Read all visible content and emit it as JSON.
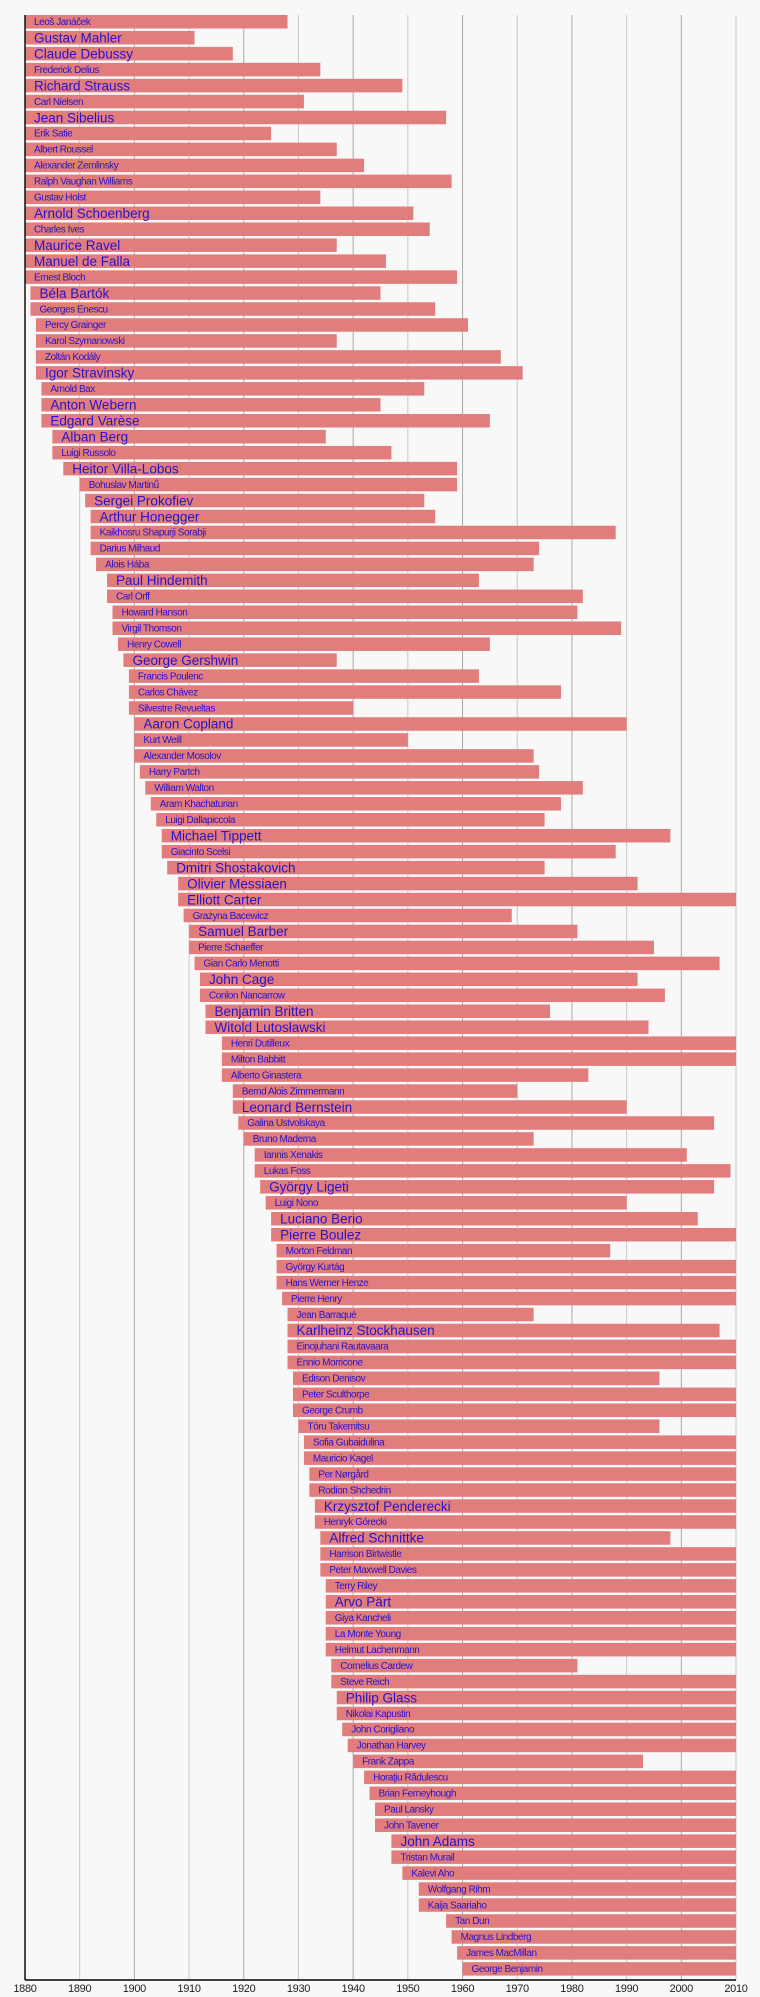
{
  "chart_data": {
    "type": "bar",
    "orientation": "horizontal-timeline",
    "title": "",
    "xlabel": "",
    "ylabel": "",
    "xlim": [
      1880,
      2010
    ],
    "x_ticks": [
      1880,
      1890,
      1900,
      1910,
      1920,
      1930,
      1940,
      1950,
      1960,
      1970,
      1980,
      1990,
      2000,
      2010
    ],
    "grid": "vertical, every 10 years (darker every 20 years)",
    "colors": {
      "bar": "#e27d7d",
      "label": "#2a12c8",
      "background": "#f8f8f8"
    },
    "bars": [
      {
        "name": "Leoš Janáček",
        "start": 1880,
        "end": 1928,
        "major": false
      },
      {
        "name": "Gustav Mahler",
        "start": 1880,
        "end": 1911,
        "major": true
      },
      {
        "name": "Claude Debussy",
        "start": 1880,
        "end": 1918,
        "major": true
      },
      {
        "name": "Frederick Delius",
        "start": 1880,
        "end": 1934,
        "major": false
      },
      {
        "name": "Richard Strauss",
        "start": 1880,
        "end": 1949,
        "major": true
      },
      {
        "name": "Carl Nielsen",
        "start": 1880,
        "end": 1931,
        "major": false
      },
      {
        "name": "Jean Sibelius",
        "start": 1880,
        "end": 1957,
        "major": true
      },
      {
        "name": "Erik Satie",
        "start": 1880,
        "end": 1925,
        "major": false
      },
      {
        "name": "Albert Roussel",
        "start": 1880,
        "end": 1937,
        "major": false
      },
      {
        "name": "Alexander Zemlinsky",
        "start": 1880,
        "end": 1942,
        "major": false
      },
      {
        "name": "Ralph Vaughan Williams",
        "start": 1880,
        "end": 1958,
        "major": false
      },
      {
        "name": "Gustav Holst",
        "start": 1880,
        "end": 1934,
        "major": false
      },
      {
        "name": "Arnold Schoenberg",
        "start": 1880,
        "end": 1951,
        "major": true
      },
      {
        "name": "Charles Ives",
        "start": 1880,
        "end": 1954,
        "major": false
      },
      {
        "name": "Maurice Ravel",
        "start": 1880,
        "end": 1937,
        "major": true
      },
      {
        "name": "Manuel de Falla",
        "start": 1880,
        "end": 1946,
        "major": true
      },
      {
        "name": "Ernest Bloch",
        "start": 1880,
        "end": 1959,
        "major": false
      },
      {
        "name": "Béla Bartók",
        "start": 1881,
        "end": 1945,
        "major": true
      },
      {
        "name": "Georges Enescu",
        "start": 1881,
        "end": 1955,
        "major": false
      },
      {
        "name": "Percy Grainger",
        "start": 1882,
        "end": 1961,
        "major": false
      },
      {
        "name": "Karol Szymanowski",
        "start": 1882,
        "end": 1937,
        "major": false
      },
      {
        "name": "Zoltán Kodály",
        "start": 1882,
        "end": 1967,
        "major": false
      },
      {
        "name": "Igor Stravinsky",
        "start": 1882,
        "end": 1971,
        "major": true
      },
      {
        "name": "Arnold Bax",
        "start": 1883,
        "end": 1953,
        "major": false
      },
      {
        "name": "Anton Webern",
        "start": 1883,
        "end": 1945,
        "major": true
      },
      {
        "name": "Edgard Varèse",
        "start": 1883,
        "end": 1965,
        "major": true
      },
      {
        "name": "Alban Berg",
        "start": 1885,
        "end": 1935,
        "major": true
      },
      {
        "name": "Luigi Russolo",
        "start": 1885,
        "end": 1947,
        "major": false
      },
      {
        "name": "Heitor Villa-Lobos",
        "start": 1887,
        "end": 1959,
        "major": true
      },
      {
        "name": "Bohuslav Martinů",
        "start": 1890,
        "end": 1959,
        "major": false
      },
      {
        "name": "Sergei Prokofiev",
        "start": 1891,
        "end": 1953,
        "major": true
      },
      {
        "name": "Arthur Honegger",
        "start": 1892,
        "end": 1955,
        "major": true
      },
      {
        "name": "Kaikhosru Shapurji Sorabji",
        "start": 1892,
        "end": 1988,
        "major": false
      },
      {
        "name": "Darius Milhaud",
        "start": 1892,
        "end": 1974,
        "major": false
      },
      {
        "name": "Alois Hába",
        "start": 1893,
        "end": 1973,
        "major": false
      },
      {
        "name": "Paul Hindemith",
        "start": 1895,
        "end": 1963,
        "major": true
      },
      {
        "name": "Carl Orff",
        "start": 1895,
        "end": 1982,
        "major": false
      },
      {
        "name": "Howard Hanson",
        "start": 1896,
        "end": 1981,
        "major": false
      },
      {
        "name": "Virgil Thomson",
        "start": 1896,
        "end": 1989,
        "major": false
      },
      {
        "name": "Henry Cowell",
        "start": 1897,
        "end": 1965,
        "major": false
      },
      {
        "name": "George Gershwin",
        "start": 1898,
        "end": 1937,
        "major": true
      },
      {
        "name": "Francis Poulenc",
        "start": 1899,
        "end": 1963,
        "major": false
      },
      {
        "name": "Carlos Chávez",
        "start": 1899,
        "end": 1978,
        "major": false
      },
      {
        "name": "Silvestre Revueltas",
        "start": 1899,
        "end": 1940,
        "major": false
      },
      {
        "name": "Aaron Copland",
        "start": 1900,
        "end": 1990,
        "major": true
      },
      {
        "name": "Kurt Weill",
        "start": 1900,
        "end": 1950,
        "major": false
      },
      {
        "name": "Alexander Mosolov",
        "start": 1900,
        "end": 1973,
        "major": false
      },
      {
        "name": "Harry Partch",
        "start": 1901,
        "end": 1974,
        "major": false
      },
      {
        "name": "William Walton",
        "start": 1902,
        "end": 1982,
        "major": false
      },
      {
        "name": "Aram Khachaturian",
        "start": 1903,
        "end": 1978,
        "major": false
      },
      {
        "name": "Luigi Dallapiccola",
        "start": 1904,
        "end": 1975,
        "major": false
      },
      {
        "name": "Michael Tippett",
        "start": 1905,
        "end": 1998,
        "major": true
      },
      {
        "name": "Giacinto Scelsi",
        "start": 1905,
        "end": 1988,
        "major": false
      },
      {
        "name": "Dmitri Shostakovich",
        "start": 1906,
        "end": 1975,
        "major": true
      },
      {
        "name": "Olivier Messiaen",
        "start": 1908,
        "end": 1992,
        "major": true
      },
      {
        "name": "Elliott Carter",
        "start": 1908,
        "end": 2010,
        "major": true
      },
      {
        "name": "Grażyna Bacewicz",
        "start": 1909,
        "end": 1969,
        "major": false
      },
      {
        "name": "Samuel Barber",
        "start": 1910,
        "end": 1981,
        "major": true
      },
      {
        "name": "Pierre Schaeffer",
        "start": 1910,
        "end": 1995,
        "major": false
      },
      {
        "name": "Gian Carlo Menotti",
        "start": 1911,
        "end": 2007,
        "major": false
      },
      {
        "name": "John Cage",
        "start": 1912,
        "end": 1992,
        "major": true
      },
      {
        "name": "Conlon Nancarrow",
        "start": 1912,
        "end": 1997,
        "major": false
      },
      {
        "name": "Benjamin Britten",
        "start": 1913,
        "end": 1976,
        "major": true
      },
      {
        "name": "Witold Lutosławski",
        "start": 1913,
        "end": 1994,
        "major": true
      },
      {
        "name": "Henri Dutilleux",
        "start": 1916,
        "end": 2010,
        "major": false
      },
      {
        "name": "Milton Babbitt",
        "start": 1916,
        "end": 2010,
        "major": false
      },
      {
        "name": "Alberto Ginastera",
        "start": 1916,
        "end": 1983,
        "major": false
      },
      {
        "name": "Bernd Alois Zimmermann",
        "start": 1918,
        "end": 1970,
        "major": false
      },
      {
        "name": "Leonard Bernstein",
        "start": 1918,
        "end": 1990,
        "major": true
      },
      {
        "name": "Galina Ustvolskaya",
        "start": 1919,
        "end": 2006,
        "major": false
      },
      {
        "name": "Bruno Maderna",
        "start": 1920,
        "end": 1973,
        "major": false
      },
      {
        "name": "Iannis Xenakis",
        "start": 1922,
        "end": 2001,
        "major": false
      },
      {
        "name": "Lukas Foss",
        "start": 1922,
        "end": 2009,
        "major": false
      },
      {
        "name": "György Ligeti",
        "start": 1923,
        "end": 2006,
        "major": true
      },
      {
        "name": "Luigi Nono",
        "start": 1924,
        "end": 1990,
        "major": false
      },
      {
        "name": "Luciano Berio",
        "start": 1925,
        "end": 2003,
        "major": true
      },
      {
        "name": "Pierre Boulez",
        "start": 1925,
        "end": 2010,
        "major": true
      },
      {
        "name": "Morton Feldman",
        "start": 1926,
        "end": 1987,
        "major": false
      },
      {
        "name": "György Kurtág",
        "start": 1926,
        "end": 2010,
        "major": false
      },
      {
        "name": "Hans Werner Henze",
        "start": 1926,
        "end": 2010,
        "major": false
      },
      {
        "name": "Pierre Henry",
        "start": 1927,
        "end": 2010,
        "major": false
      },
      {
        "name": "Jean Barraqué",
        "start": 1928,
        "end": 1973,
        "major": false
      },
      {
        "name": "Karlheinz Stockhausen",
        "start": 1928,
        "end": 2007,
        "major": true
      },
      {
        "name": "Einojuhani Rautavaara",
        "start": 1928,
        "end": 2010,
        "major": false
      },
      {
        "name": "Ennio Morricone",
        "start": 1928,
        "end": 2010,
        "major": false
      },
      {
        "name": "Edison Denisov",
        "start": 1929,
        "end": 1996,
        "major": false
      },
      {
        "name": "Peter Sculthorpe",
        "start": 1929,
        "end": 2010,
        "major": false
      },
      {
        "name": "George Crumb",
        "start": 1929,
        "end": 2010,
        "major": false
      },
      {
        "name": "Tōru Takemitsu",
        "start": 1930,
        "end": 1996,
        "major": false
      },
      {
        "name": "Sofia Gubaidulina",
        "start": 1931,
        "end": 2010,
        "major": false
      },
      {
        "name": "Mauricio Kagel",
        "start": 1931,
        "end": 2010,
        "major": false
      },
      {
        "name": "Per Nørgård",
        "start": 1932,
        "end": 2010,
        "major": false
      },
      {
        "name": "Rodion Shchedrin",
        "start": 1932,
        "end": 2010,
        "major": false
      },
      {
        "name": "Krzysztof Penderecki",
        "start": 1933,
        "end": 2010,
        "major": true
      },
      {
        "name": "Henryk Górecki",
        "start": 1933,
        "end": 2010,
        "major": false
      },
      {
        "name": "Alfred Schnittke",
        "start": 1934,
        "end": 1998,
        "major": true
      },
      {
        "name": "Harrison Birtwistle",
        "start": 1934,
        "end": 2010,
        "major": false
      },
      {
        "name": "Peter Maxwell Davies",
        "start": 1934,
        "end": 2010,
        "major": false
      },
      {
        "name": "Terry Riley",
        "start": 1935,
        "end": 2010,
        "major": false
      },
      {
        "name": "Arvo Pärt",
        "start": 1935,
        "end": 2010,
        "major": true
      },
      {
        "name": "Giya Kancheli",
        "start": 1935,
        "end": 2010,
        "major": false
      },
      {
        "name": "La Monte Young",
        "start": 1935,
        "end": 2010,
        "major": false
      },
      {
        "name": "Helmut Lachenmann",
        "start": 1935,
        "end": 2010,
        "major": false
      },
      {
        "name": "Cornelius Cardew",
        "start": 1936,
        "end": 1981,
        "major": false
      },
      {
        "name": "Steve Reich",
        "start": 1936,
        "end": 2010,
        "major": false
      },
      {
        "name": "Philip Glass",
        "start": 1937,
        "end": 2010,
        "major": true
      },
      {
        "name": "Nikolai Kapustin",
        "start": 1937,
        "end": 2010,
        "major": false
      },
      {
        "name": "John Corigliano",
        "start": 1938,
        "end": 2010,
        "major": false
      },
      {
        "name": "Jonathan Harvey",
        "start": 1939,
        "end": 2010,
        "major": false
      },
      {
        "name": "Frank Zappa",
        "start": 1940,
        "end": 1993,
        "major": false
      },
      {
        "name": "Horaţiu Rădulescu",
        "start": 1942,
        "end": 2010,
        "major": false
      },
      {
        "name": "Brian Ferneyhough",
        "start": 1943,
        "end": 2010,
        "major": false
      },
      {
        "name": "Paul Lansky",
        "start": 1944,
        "end": 2010,
        "major": false
      },
      {
        "name": "John Tavener",
        "start": 1944,
        "end": 2010,
        "major": false
      },
      {
        "name": "John Adams",
        "start": 1947,
        "end": 2010,
        "major": true
      },
      {
        "name": "Tristan Murail",
        "start": 1947,
        "end": 2010,
        "major": false
      },
      {
        "name": "Kalevi Aho",
        "start": 1949,
        "end": 2010,
        "major": false
      },
      {
        "name": "Wolfgang Rihm",
        "start": 1952,
        "end": 2010,
        "major": false
      },
      {
        "name": "Kaija Saariaho",
        "start": 1952,
        "end": 2010,
        "major": false
      },
      {
        "name": "Tan Dun",
        "start": 1957,
        "end": 2010,
        "major": false
      },
      {
        "name": "Magnus Lindberg",
        "start": 1958,
        "end": 2010,
        "major": false
      },
      {
        "name": "James MacMillan",
        "start": 1959,
        "end": 2010,
        "major": false
      },
      {
        "name": "George Benjamin",
        "start": 1960,
        "end": 2010,
        "major": false
      }
    ]
  }
}
